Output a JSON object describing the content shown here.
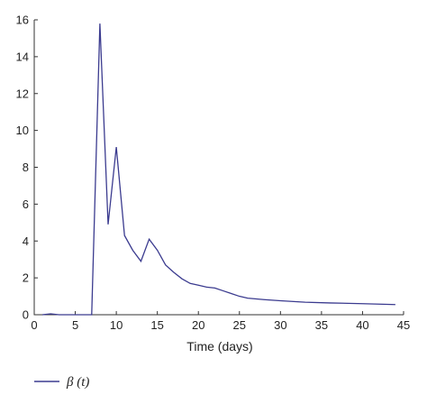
{
  "chart_data": {
    "type": "line",
    "xlabel": "Time (days)",
    "ylabel": "",
    "xlim": [
      0,
      45
    ],
    "ylim": [
      0,
      16
    ],
    "x_ticks": [
      0,
      5,
      10,
      15,
      20,
      25,
      30,
      35,
      40,
      45
    ],
    "y_ticks": [
      0,
      2,
      4,
      6,
      8,
      10,
      12,
      14,
      16
    ],
    "grid": false,
    "legend_position": "bottom-left",
    "series": [
      {
        "name": "β (t)",
        "color": "#3b3b8f",
        "x": [
          1,
          2,
          3,
          4,
          5,
          6,
          7,
          8,
          9,
          10,
          11,
          12,
          13,
          14,
          15,
          16,
          17,
          18,
          19,
          20,
          21,
          22,
          23,
          24,
          25,
          26,
          28,
          30,
          33,
          36,
          40,
          44
        ],
        "y": [
          0,
          0.05,
          0,
          0,
          0,
          0,
          0,
          15.8,
          4.9,
          9.1,
          4.3,
          3.5,
          2.9,
          4.1,
          3.5,
          2.7,
          2.3,
          1.95,
          1.7,
          1.6,
          1.5,
          1.45,
          1.3,
          1.15,
          1.0,
          0.9,
          0.82,
          0.76,
          0.68,
          0.64,
          0.6,
          0.55
        ]
      }
    ],
    "legend": [
      {
        "label": "β (t)"
      }
    ]
  }
}
